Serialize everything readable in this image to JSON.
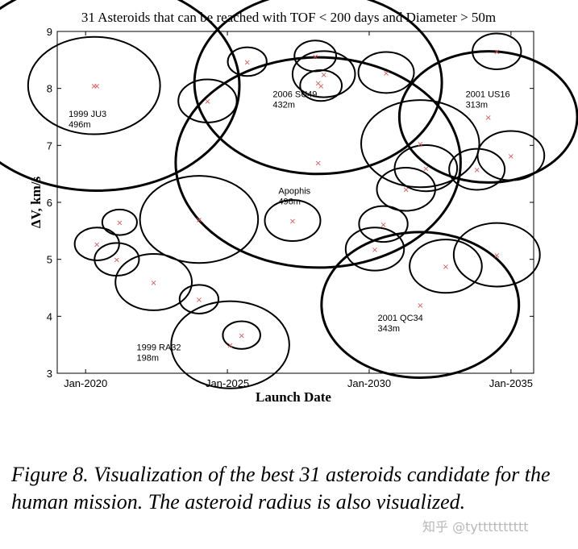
{
  "chart_data": {
    "type": "scatter",
    "title": "31 Asteroids that can be reached with TOF < 200 days and Diameter > 50m",
    "xlabel": "Launch Date",
    "ylabel": "ΔV, km/s",
    "xlim": [
      2019.0,
      2035.8
    ],
    "ylim": [
      3,
      9
    ],
    "x_ticks": [
      2020,
      2025,
      2030,
      2035
    ],
    "x_tick_labels": [
      "Jan-2020",
      "Jan-2025",
      "Jan-2030",
      "Jan-2035"
    ],
    "y_ticks": [
      3,
      4,
      5,
      6,
      7,
      8,
      9
    ],
    "y_tick_labels": [
      "3",
      "4",
      "5",
      "6",
      "7",
      "8",
      "9"
    ],
    "marker_color": "#e05050",
    "circle_color": "#000000",
    "points": [
      {
        "x": 2020.3,
        "y": 8.05,
        "r_ns": 0.95
      },
      {
        "x": 2020.4,
        "y": 8.05,
        "r_ns": 2.05
      },
      {
        "x": 2020.4,
        "y": 5.27,
        "r_ns": 0.32
      },
      {
        "x": 2021.1,
        "y": 5.0,
        "r_ns": 0.32
      },
      {
        "x": 2021.2,
        "y": 5.65,
        "r_ns": 0.25
      },
      {
        "x": 2022.4,
        "y": 4.6,
        "r_ns": 0.55
      },
      {
        "x": 2024.0,
        "y": 5.7,
        "r_ns": 0.85
      },
      {
        "x": 2024.0,
        "y": 4.3,
        "r_ns": 0.28
      },
      {
        "x": 2024.3,
        "y": 7.78,
        "r_ns": 0.42
      },
      {
        "x": 2025.1,
        "y": 3.5,
        "r_ns": 0.85
      },
      {
        "x": 2025.5,
        "y": 3.67,
        "r_ns": 0.27
      },
      {
        "x": 2025.7,
        "y": 8.47,
        "r_ns": 0.28
      },
      {
        "x": 2027.3,
        "y": 5.68,
        "r_ns": 0.4
      },
      {
        "x": 2028.1,
        "y": 8.57,
        "r_ns": 0.3
      },
      {
        "x": 2028.3,
        "y": 8.05,
        "r_ns": 0.3
      },
      {
        "x": 2028.4,
        "y": 8.25,
        "r_ns": 0.45
      },
      {
        "x": 2028.2,
        "y": 8.1,
        "r_ns": 1.78
      },
      {
        "x": 2028.2,
        "y": 6.7,
        "r_ns": 2.05
      },
      {
        "x": 2030.2,
        "y": 5.18,
        "r_ns": 0.42
      },
      {
        "x": 2030.5,
        "y": 5.62,
        "r_ns": 0.35
      },
      {
        "x": 2030.6,
        "y": 8.28,
        "r_ns": 0.4
      },
      {
        "x": 2031.3,
        "y": 6.23,
        "r_ns": 0.42
      },
      {
        "x": 2031.8,
        "y": 7.03,
        "r_ns": 0.85
      },
      {
        "x": 2031.8,
        "y": 4.2,
        "r_ns": 1.42
      },
      {
        "x": 2032.0,
        "y": 6.6,
        "r_ns": 0.45
      },
      {
        "x": 2032.7,
        "y": 4.88,
        "r_ns": 0.52
      },
      {
        "x": 2033.8,
        "y": 6.58,
        "r_ns": 0.4
      },
      {
        "x": 2034.2,
        "y": 7.5,
        "r_ns": 1.28
      },
      {
        "x": 2034.5,
        "y": 8.65,
        "r_ns": 0.35
      },
      {
        "x": 2034.5,
        "y": 5.08,
        "r_ns": 0.62
      },
      {
        "x": 2035.0,
        "y": 6.82,
        "r_ns": 0.48
      }
    ],
    "annotations": [
      {
        "name": "1999 JU3",
        "diameter": "496m",
        "x": 2019.4,
        "y": 7.5
      },
      {
        "name": "2006 SU49",
        "diameter": "432m",
        "x": 2026.6,
        "y": 7.85
      },
      {
        "name": "2001 US16",
        "diameter": "313m",
        "x": 2033.4,
        "y": 7.85
      },
      {
        "name": "Apophis",
        "diameter": "496m",
        "x": 2026.8,
        "y": 6.15
      },
      {
        "name": "2001 QC34",
        "diameter": "343m",
        "x": 2030.3,
        "y": 3.92
      },
      {
        "name": "1999 RA32",
        "diameter": "198m",
        "x": 2021.8,
        "y": 3.4
      }
    ]
  },
  "caption": "Figure 8. Visualization of the best 31 asteroids candidate for the human mission. The asteroid radius is also visualized.",
  "watermark": "知乎 @tytttttttttt"
}
